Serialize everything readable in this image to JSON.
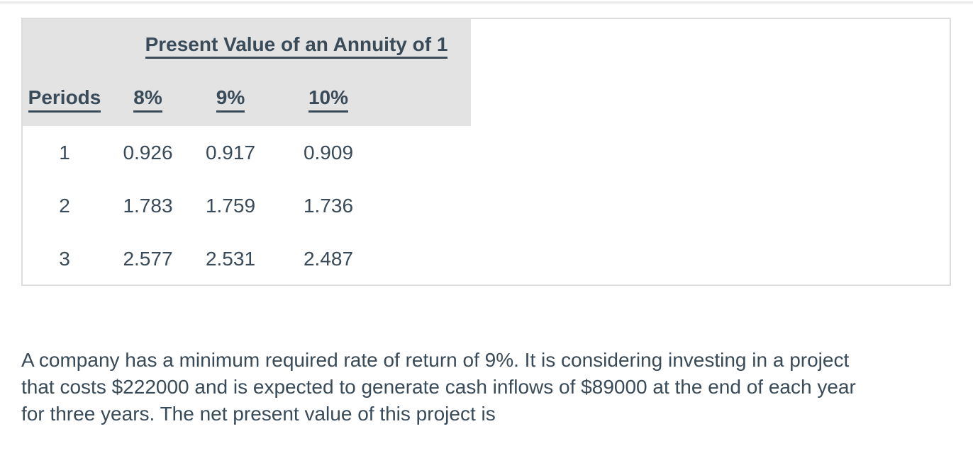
{
  "page": {
    "text_color": "#394a58",
    "header_fill": "#e3e3e3",
    "card_border": "#dcdcdc",
    "top_rule_color": "#eaeaea"
  },
  "table": {
    "title": "Present Value of an Annuity of 1",
    "columns": [
      "Periods",
      "8%",
      "9%",
      "10%"
    ],
    "rows": [
      {
        "period": "1",
        "values": [
          "0.926",
          "0.917",
          "0.909"
        ]
      },
      {
        "period": "2",
        "values": [
          "1.783",
          "1.759",
          "1.736"
        ]
      },
      {
        "period": "3",
        "values": [
          "2.577",
          "2.531",
          "2.487"
        ]
      }
    ]
  },
  "question": {
    "lines": [
      "A company has a minimum required rate of return of 9%. It is considering investing in a project",
      "that costs $222000 and is expected to generate cash inflows of $89000 at the end of each year",
      "for three years. The net present value of this project is"
    ]
  }
}
